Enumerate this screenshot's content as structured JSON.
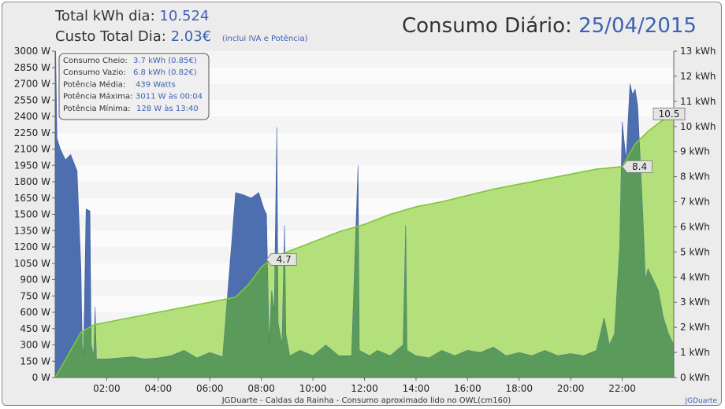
{
  "header": {
    "kwh_label": "Total kWh dia:",
    "kwh_value": "10.524",
    "cost_label": "Custo Total Dia:",
    "cost_value": "2.03€",
    "cost_note": "(inclui IVA e Potência)",
    "title_label": "Consumo Diário:",
    "title_date": "25/04/2015"
  },
  "info_box": [
    {
      "label": "Consumo Cheio:",
      "value": "3.7 kWh (0.85€)"
    },
    {
      "label": "Consumo Vazio:",
      "value": "6.8 kWh (0.82€)"
    },
    {
      "label": "Potência Média:",
      "value": "439 Watts"
    },
    {
      "label": "Potência Máxima:",
      "value": "3011 W às 00:04"
    },
    {
      "label": "Potência Mínima:",
      "value": "128 W às 13:40"
    }
  ],
  "footer": {
    "caption": "JGDuarte  -  Caldas da Rainha  -  Consumo aproximado lido no OWL(cm160)",
    "credit": "JGDuarte"
  },
  "colors": {
    "power": "#4d6fb0",
    "cumulative_fill": "#b4e07c",
    "cumulative_line": "#7dc63a",
    "overlap": "#5a9a5a",
    "value_text": "#3c62b5"
  },
  "chart_data": {
    "type": "area",
    "x_range_hours": [
      0,
      24
    ],
    "x_ticks": [
      "02:00",
      "04:00",
      "06:00",
      "08:00",
      "10:00",
      "12:00",
      "14:00",
      "16:00",
      "18:00",
      "20:00",
      "22:00"
    ],
    "y_left": {
      "unit": "W",
      "ylim": [
        0,
        3000
      ],
      "ticks": [
        "0 W",
        "150 W",
        "300 W",
        "450 W",
        "600 W",
        "750 W",
        "900 W",
        "1050 W",
        "1200 W",
        "1350 W",
        "1500 W",
        "1650 W",
        "1800 W",
        "1950 W",
        "2100 W",
        "2250 W",
        "2400 W",
        "2550 W",
        "2700 W",
        "2850 W",
        "3000 W"
      ]
    },
    "y_right": {
      "unit": "kWh",
      "ylim": [
        0,
        13
      ],
      "ticks": [
        "0 kWh",
        "1 kWh",
        "2 kWh",
        "3 kWh",
        "4 kWh",
        "5 kWh",
        "6 kWh",
        "7 kWh",
        "8 kWh",
        "9 kWh",
        "10 kWh",
        "11 kWh",
        "12 kWh",
        "13 kWh"
      ]
    },
    "grid": "horizontal bands",
    "series": [
      {
        "axis": "left",
        "points": [
          [
            0,
            0
          ],
          [
            0.02,
            3000
          ],
          [
            0.07,
            2200
          ],
          [
            0.2,
            2100
          ],
          [
            0.4,
            2000
          ],
          [
            0.6,
            2050
          ],
          [
            0.85,
            1900
          ],
          [
            1.0,
            1000
          ],
          [
            1.05,
            300
          ],
          [
            1.1,
            200
          ],
          [
            1.2,
            1550
          ],
          [
            1.35,
            1530
          ],
          [
            1.4,
            300
          ],
          [
            1.5,
            200
          ],
          [
            1.55,
            650
          ],
          [
            1.6,
            170
          ],
          [
            2.0,
            170
          ],
          [
            2.5,
            180
          ],
          [
            3.0,
            190
          ],
          [
            3.5,
            170
          ],
          [
            4.0,
            180
          ],
          [
            4.5,
            200
          ],
          [
            5.0,
            250
          ],
          [
            5.5,
            180
          ],
          [
            6.0,
            230
          ],
          [
            6.5,
            190
          ],
          [
            7.0,
            1700
          ],
          [
            7.3,
            1680
          ],
          [
            7.6,
            1650
          ],
          [
            7.9,
            1700
          ],
          [
            8.1,
            1550
          ],
          [
            8.2,
            1500
          ],
          [
            8.3,
            300
          ],
          [
            8.4,
            800
          ],
          [
            8.5,
            600
          ],
          [
            8.6,
            2300
          ],
          [
            8.65,
            500
          ],
          [
            8.8,
            300
          ],
          [
            8.9,
            1400
          ],
          [
            8.95,
            400
          ],
          [
            9.1,
            200
          ],
          [
            9.5,
            250
          ],
          [
            10.0,
            200
          ],
          [
            10.5,
            300
          ],
          [
            11.0,
            200
          ],
          [
            11.5,
            200
          ],
          [
            11.75,
            1950
          ],
          [
            11.8,
            250
          ],
          [
            12.2,
            200
          ],
          [
            12.5,
            250
          ],
          [
            13.0,
            200
          ],
          [
            13.5,
            300
          ],
          [
            13.6,
            1400
          ],
          [
            13.65,
            250
          ],
          [
            14.0,
            200
          ],
          [
            14.5,
            180
          ],
          [
            15.0,
            250
          ],
          [
            15.5,
            200
          ],
          [
            16.0,
            250
          ],
          [
            16.5,
            230
          ],
          [
            17.0,
            280
          ],
          [
            17.5,
            200
          ],
          [
            18.0,
            230
          ],
          [
            18.5,
            200
          ],
          [
            19.0,
            250
          ],
          [
            19.5,
            200
          ],
          [
            20.0,
            220
          ],
          [
            20.5,
            200
          ],
          [
            21.0,
            250
          ],
          [
            21.3,
            550
          ],
          [
            21.5,
            300
          ],
          [
            21.7,
            400
          ],
          [
            21.9,
            1200
          ],
          [
            22.0,
            2350
          ],
          [
            22.15,
            2000
          ],
          [
            22.3,
            2700
          ],
          [
            22.4,
            2600
          ],
          [
            22.5,
            2650
          ],
          [
            22.6,
            2500
          ],
          [
            22.7,
            2000
          ],
          [
            22.8,
            1500
          ],
          [
            22.9,
            900
          ],
          [
            23.0,
            1000
          ],
          [
            23.2,
            900
          ],
          [
            23.4,
            800
          ],
          [
            23.6,
            550
          ],
          [
            23.8,
            400
          ],
          [
            24.0,
            300
          ],
          [
            24.0,
            0
          ]
        ]
      },
      {
        "axis": "right",
        "points": [
          [
            0,
            0
          ],
          [
            1.0,
            1.8
          ],
          [
            1.5,
            2.1
          ],
          [
            2.0,
            2.2
          ],
          [
            3.0,
            2.4
          ],
          [
            4.0,
            2.6
          ],
          [
            5.0,
            2.8
          ],
          [
            6.0,
            3.0
          ],
          [
            7.0,
            3.2
          ],
          [
            7.5,
            3.7
          ],
          [
            8.0,
            4.4
          ],
          [
            8.5,
            4.8
          ],
          [
            9.0,
            5.0
          ],
          [
            10.0,
            5.4
          ],
          [
            11.0,
            5.8
          ],
          [
            12.0,
            6.1
          ],
          [
            13.0,
            6.5
          ],
          [
            14.0,
            6.8
          ],
          [
            15.0,
            7.0
          ],
          [
            16.0,
            7.25
          ],
          [
            17.0,
            7.5
          ],
          [
            18.0,
            7.7
          ],
          [
            19.0,
            7.9
          ],
          [
            20.0,
            8.1
          ],
          [
            21.0,
            8.3
          ],
          [
            22.0,
            8.4
          ],
          [
            22.5,
            9.3
          ],
          [
            23.0,
            9.8
          ],
          [
            23.5,
            10.2
          ],
          [
            24.0,
            10.5
          ]
        ]
      }
    ],
    "annotations": [
      {
        "x": 8.2,
        "y": 4.7,
        "text": "4.7"
      },
      {
        "x": 22.0,
        "y": 8.4,
        "text": "8.4"
      },
      {
        "x": 24.0,
        "y": 10.5,
        "text": "10.5"
      }
    ]
  }
}
